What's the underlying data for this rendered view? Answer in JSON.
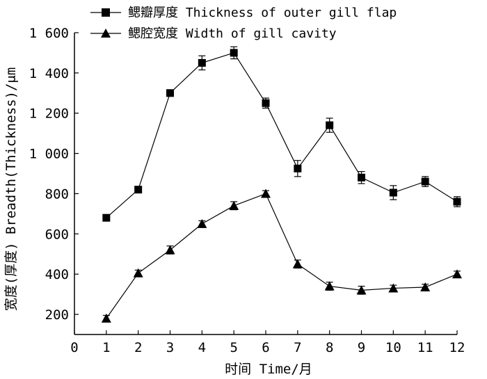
{
  "chart_data": {
    "type": "line",
    "title": "",
    "xlabel": "时间 Time/月",
    "ylabel": "宽度(厚度) Breadth(Thickness)/μm",
    "x": [
      1,
      2,
      3,
      4,
      5,
      6,
      7,
      8,
      9,
      10,
      11,
      12
    ],
    "xlim": [
      0,
      12
    ],
    "ylim": [
      100,
      1600
    ],
    "x_ticks": [
      "0",
      "1",
      "2",
      "3",
      "4",
      "5",
      "6",
      "7",
      "8",
      "9",
      "10",
      "11",
      "12"
    ],
    "y_ticks": [
      {
        "value": 200,
        "label": "200"
      },
      {
        "value": 400,
        "label": "400"
      },
      {
        "value": 600,
        "label": "600"
      },
      {
        "value": 800,
        "label": "800"
      },
      {
        "value": 1000,
        "label": "1 000"
      },
      {
        "value": 1200,
        "label": "1 200"
      },
      {
        "value": 1400,
        "label": "1 400"
      },
      {
        "value": 1600,
        "label": "1 600"
      }
    ],
    "grid": false,
    "legend_position": "top",
    "series": [
      {
        "name": "鳃瓣厚度 Thickness of outer gill flap",
        "marker": "square",
        "color": "#000000",
        "values": [
          680,
          820,
          1300,
          1450,
          1500,
          1250,
          925,
          1140,
          880,
          805,
          860,
          760
        ],
        "errors": [
          10,
          15,
          15,
          35,
          30,
          25,
          40,
          35,
          30,
          35,
          25,
          25
        ]
      },
      {
        "name": "鳃腔宽度 Width of gill cavity",
        "marker": "triangle",
        "color": "#000000",
        "values": [
          180,
          405,
          520,
          650,
          740,
          800,
          450,
          340,
          320,
          330,
          335,
          400
        ],
        "errors": [
          15,
          15,
          20,
          15,
          20,
          15,
          20,
          20,
          20,
          15,
          15,
          15
        ]
      }
    ]
  }
}
